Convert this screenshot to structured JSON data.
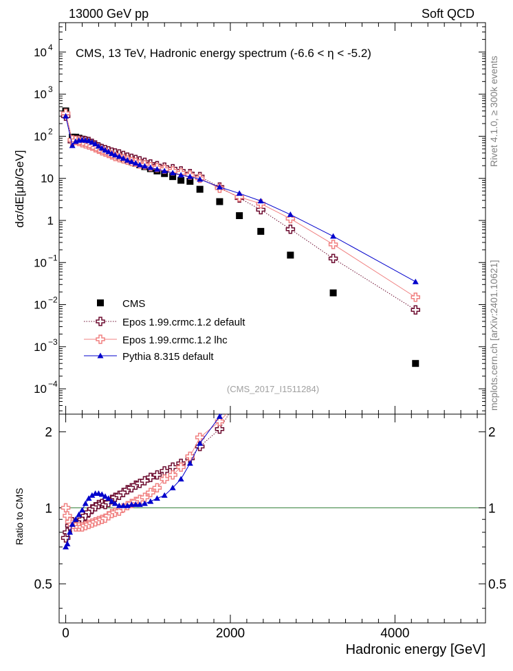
{
  "header": {
    "left": "13000 GeV pp",
    "right": "Soft QCD"
  },
  "side_labels": {
    "rivet": "Rivet 4.1.0, ≥ 300k events",
    "mcplots": "mcplots.cern.ch [arXiv:2401.10621]"
  },
  "chart_data": [
    {
      "type": "scatter",
      "panel": "main",
      "title": "CMS, 13 TeV, Hadronic energy spectrum (-6.6 <    η < -5.2)",
      "ylabel": "dσ/dE[μb/GeV]",
      "yscale": "log",
      "ylim": [
        2.5e-05,
        50000
      ],
      "xlim": [
        -80,
        5100
      ],
      "analysis_id": "(CMS_2017_I1511284)",
      "x": [
        0,
        80,
        120,
        160,
        200,
        240,
        280,
        320,
        360,
        400,
        440,
        480,
        520,
        560,
        600,
        650,
        700,
        750,
        800,
        850,
        900,
        960,
        1030,
        1110,
        1200,
        1300,
        1400,
        1510,
        1630,
        1870,
        2110,
        2370,
        2730,
        3250,
        4250
      ],
      "series": [
        {
          "name": "CMS",
          "style": "square",
          "color": "#000000",
          "values": [
            400,
            95,
            95,
            90,
            85,
            80,
            72,
            66,
            60,
            55,
            50,
            46,
            42,
            38,
            35,
            32,
            29,
            27,
            25,
            23,
            21,
            19,
            17,
            15,
            13,
            11,
            9,
            8.5,
            5.5,
            2.8,
            1.3,
            0.55,
            0.15,
            0.019,
            0.0004
          ]
        },
        {
          "name": "Epos 1.99.crmc.1.2 default",
          "style": "cross-open",
          "color": "#6b0a2e",
          "line": "dotted",
          "values": [
            300,
            75,
            80,
            82,
            80,
            78,
            75,
            68,
            62,
            56,
            51,
            48,
            45,
            42,
            40,
            38,
            35,
            32,
            30,
            28,
            26,
            24,
            22,
            20,
            18.5,
            17,
            15,
            13,
            11,
            6.2,
            3.4,
            1.8,
            0.62,
            0.125,
            0.0075
          ]
        },
        {
          "name": "Epos 1.99.crmc.1.2 lhc",
          "style": "cross-open",
          "color": "#f08080",
          "line": "solid",
          "values": [
            350,
            82,
            80,
            75,
            70,
            66,
            62,
            58,
            53,
            49,
            45,
            42,
            39,
            36,
            33,
            31,
            29,
            27,
            25,
            24,
            22,
            21,
            19,
            18,
            16.5,
            15,
            13.5,
            12,
            10,
            5.8,
            3.6,
            2.5,
            1.1,
            0.27,
            0.015
          ]
        },
        {
          "name": "Pythia 8.315 default",
          "style": "triangle",
          "color": "#0000cc",
          "line": "solid",
          "values": [
            300,
            60,
            75,
            80,
            82,
            80,
            78,
            72,
            66,
            58,
            52,
            47,
            43,
            39,
            36,
            33,
            30,
            27,
            25,
            23,
            21,
            19.5,
            18,
            16.5,
            15,
            13.5,
            12,
            11,
            9.5,
            6.2,
            4.4,
            2.9,
            1.38,
            0.42,
            0.035
          ]
        }
      ]
    },
    {
      "type": "line",
      "panel": "ratio",
      "ylabel": "Ratio to CMS",
      "xlabel": "Hadronic energy [GeV]",
      "ylim": [
        0.35,
        2.35
      ],
      "xlim": [
        -80,
        5100
      ],
      "left_ticks": [
        "2",
        "1",
        "0.5"
      ],
      "right_ticks": [
        "2",
        "1",
        "0.5"
      ],
      "x_ticks": [
        "0",
        "2000",
        "4000"
      ],
      "reference": 1,
      "series": [
        {
          "name": "Epos 1.99.crmc.1.2 default",
          "color": "#6b0a2e",
          "x": [
            0,
            20,
            50,
            80,
            120,
            160,
            200,
            240,
            280,
            320,
            360,
            400,
            440,
            480,
            520,
            560,
            600,
            650,
            700,
            750,
            800,
            850,
            900,
            960,
            1030,
            1110,
            1200,
            1300,
            1400,
            1510,
            1630,
            1870,
            1980
          ],
          "values": [
            0.76,
            0.8,
            0.85,
            0.88,
            0.86,
            0.87,
            0.9,
            0.93,
            0.96,
            0.99,
            1.01,
            1.03,
            1.04,
            1.03,
            1.05,
            1.08,
            1.1,
            1.12,
            1.15,
            1.18,
            1.2,
            1.23,
            1.25,
            1.28,
            1.32,
            1.35,
            1.4,
            1.45,
            1.5,
            1.57,
            1.75,
            2.05,
            2.35
          ]
        },
        {
          "name": "Epos 1.99.crmc.1.2 lhc",
          "color": "#f08080",
          "x": [
            0,
            20,
            50,
            80,
            120,
            160,
            200,
            240,
            280,
            320,
            360,
            400,
            440,
            480,
            520,
            560,
            600,
            650,
            700,
            750,
            800,
            850,
            900,
            960,
            1030,
            1110,
            1200,
            1300,
            1400,
            1510,
            1630,
            1870,
            1950
          ],
          "values": [
            1.0,
            0.93,
            0.88,
            0.86,
            0.84,
            0.84,
            0.84,
            0.85,
            0.86,
            0.87,
            0.88,
            0.89,
            0.9,
            0.91,
            0.93,
            0.95,
            0.96,
            0.97,
            1.0,
            1.02,
            1.04,
            1.06,
            1.08,
            1.1,
            1.15,
            1.2,
            1.3,
            1.35,
            1.45,
            1.6,
            1.9,
            2.2,
            2.35
          ]
        },
        {
          "name": "Pythia 8.315 default",
          "color": "#0000cc",
          "x": [
            0,
            20,
            50,
            80,
            120,
            160,
            200,
            240,
            280,
            320,
            360,
            400,
            440,
            480,
            520,
            560,
            600,
            650,
            700,
            750,
            800,
            850,
            900,
            960,
            1030,
            1110,
            1200,
            1300,
            1400,
            1510,
            1630,
            1870,
            1900
          ],
          "values": [
            0.7,
            0.72,
            0.8,
            0.86,
            0.9,
            0.94,
            0.98,
            1.04,
            1.09,
            1.12,
            1.14,
            1.14,
            1.13,
            1.11,
            1.09,
            1.06,
            1.04,
            1.02,
            1.02,
            1.02,
            1.03,
            1.03,
            1.03,
            1.04,
            1.06,
            1.09,
            1.12,
            1.2,
            1.3,
            1.5,
            1.8,
            2.3,
            2.35
          ]
        }
      ]
    }
  ]
}
